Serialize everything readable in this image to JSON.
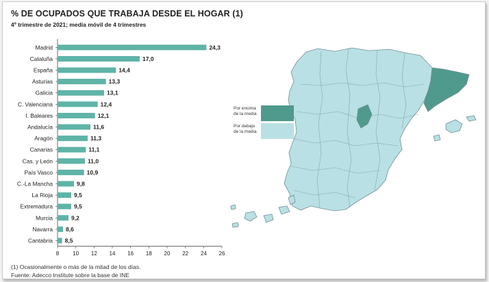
{
  "title": "% DE OCUPADOS QUE TRABAJA DESDE EL HOGAR (1)",
  "subtitle": "4º trimestre de 2021; media móvil de 4 trimestres",
  "footnote_1": "(1) Ocasionalmente o más de la mitad de los días.",
  "footnote_2": "Fuente: Adecco Institute sobre la base de INE",
  "legend": {
    "above": {
      "line1": "Por encima",
      "line2": "de la media",
      "color": "#4f9a8c"
    },
    "below": {
      "line1": "Por debajo",
      "line2": "de la media",
      "color": "#b9e0e4"
    }
  },
  "colors": {
    "bar": "#5fb3a7",
    "map_border": "#6f8f93"
  },
  "chart_data": {
    "type": "bar",
    "orientation": "horizontal",
    "categories": [
      "Madrid",
      "Cataluña",
      "España",
      "Asturias",
      "Galicia",
      "C. Valenciana",
      "I. Baleares",
      "Andalucía",
      "Aragón",
      "Canarias",
      "Cas. y León",
      "País Vasco",
      "C.-La Mancha",
      "La Rioja",
      "Extremadura",
      "Murcia",
      "Navarra",
      "Cantabria"
    ],
    "values": [
      24.3,
      17.0,
      14.4,
      13.3,
      13.1,
      12.4,
      12.1,
      11.6,
      11.3,
      11.1,
      11.0,
      10.9,
      9.8,
      9.5,
      9.5,
      9.2,
      8.6,
      8.5
    ],
    "value_labels": [
      "24,3",
      "17,0",
      "14,4",
      "13,3",
      "13,1",
      "12,4",
      "12,1",
      "11,6",
      "11,3",
      "11,1",
      "11,0",
      "10,9",
      "9,8",
      "9,5",
      "9,5",
      "9,2",
      "8,6",
      "8,5"
    ],
    "xlim": [
      8,
      26
    ],
    "xticks": [
      "8",
      "10",
      "12",
      "14",
      "16",
      "18",
      "20",
      "22",
      "24",
      "26"
    ],
    "grid": false
  }
}
